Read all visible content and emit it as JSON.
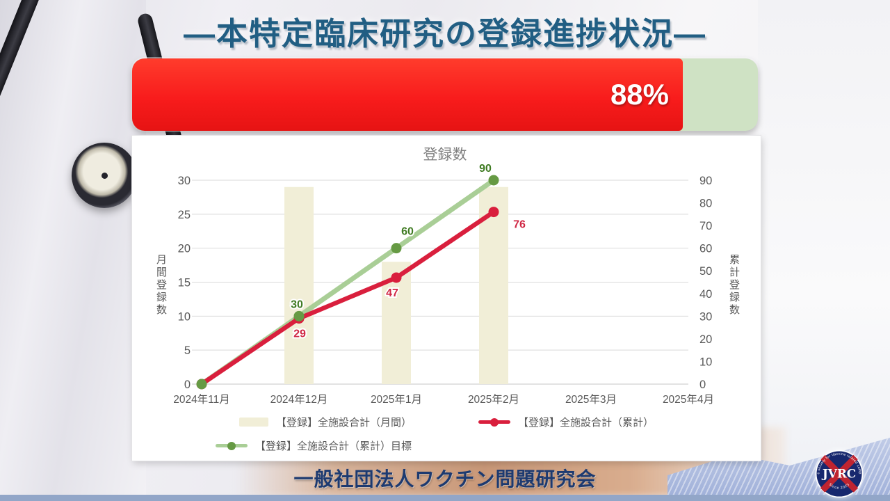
{
  "slide_title": "―本特定臨床研究の登録進捗状況―",
  "progress_bar": {
    "percent": 88,
    "label": "88%",
    "fill_color": "#f81c1c",
    "track_color": "#cfe2c4"
  },
  "chart_data": {
    "type": "combo-bar-line",
    "title": "登録数",
    "categories": [
      "2024年11月",
      "2024年12月",
      "2025年1月",
      "2025年2月",
      "2025年3月",
      "2025年4月"
    ],
    "left_axis": {
      "title": "月間登録数",
      "range": [
        0,
        30
      ],
      "ticks": [
        0,
        5,
        10,
        15,
        20,
        25,
        30
      ]
    },
    "right_axis": {
      "title": "累計登録数",
      "range": [
        0,
        90
      ],
      "ticks": [
        0,
        10,
        20,
        30,
        40,
        50,
        60,
        70,
        80,
        90
      ]
    },
    "grid": true,
    "legend_position": "bottom",
    "series": [
      {
        "name": "【登録】全施設合計（月間）",
        "type": "bar",
        "axis": "left",
        "color": "#f1eed7",
        "values": [
          null,
          29,
          18,
          29,
          null,
          null
        ]
      },
      {
        "name": "【登録】全施設合計（累計）",
        "type": "line",
        "axis": "right",
        "color": "#d91f3d",
        "marker_color": "#d91f3d",
        "label_color": "#d02744",
        "values": [
          0,
          29,
          47,
          76,
          null,
          null
        ],
        "point_labels": [
          "",
          "29",
          "47",
          "76",
          "",
          ""
        ]
      },
      {
        "name": "【登録】全施設合計（累計）目標",
        "type": "line",
        "axis": "right",
        "color": "#a9ce96",
        "marker_color": "#669a44",
        "label_color": "#3f7b22",
        "values": [
          0,
          30,
          60,
          90,
          null,
          null
        ],
        "point_labels": [
          "",
          "30",
          "60",
          "90",
          "",
          ""
        ]
      }
    ]
  },
  "footer": {
    "organization": "一般社団法人ワクチン問題研究会"
  },
  "logo": {
    "acronym": "JVRC",
    "ring_text_top": "Japanese society for Vaccine related complications",
    "ring_text_bottom": "Since 2023"
  }
}
